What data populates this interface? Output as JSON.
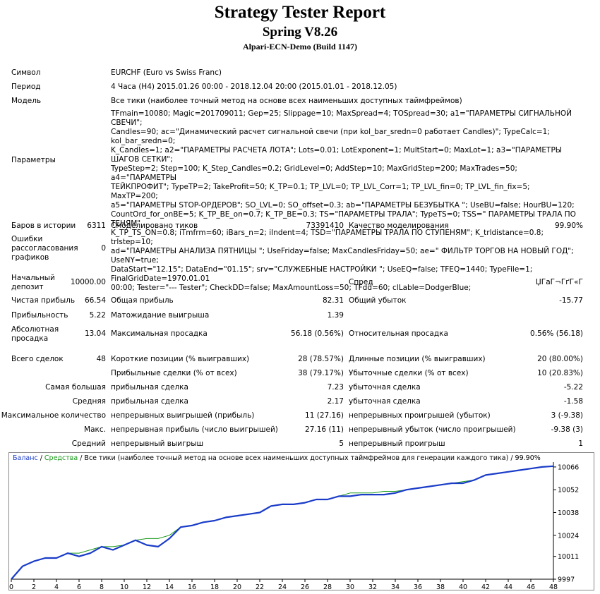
{
  "header": {
    "title": "Strategy Tester Report",
    "ea_name": "Spring V8.26",
    "server": "Alpari-ECN-Demo (Build 1147)"
  },
  "info": {
    "symbol_label": "Символ",
    "symbol_value": "EURCHF (Euro vs Swiss Franc)",
    "period_label": "Период",
    "period_value": "4 Часа (H4) 2015.01.26 00:00 - 2018.12.04 20:00 (2015.01.01 - 2018.12.05)",
    "model_label": "Модель",
    "model_value": "Все тики (наиболее точный метод на основе всех наименьших доступных таймфреймов)",
    "params_label": "Параметры",
    "params_lines": [
      "TFmain=10080; Magic=201709011; Gep=25; Slippage=10; MaxSpread=4; TOSpread=30; a1=\"ПАРАМЕТРЫ СИГНАЛЬНОЙ СВЕЧИ\";",
      "Candles=90; ac=\"Динамический расчет сигнальной свечи (при kol_bar_sredn=0 работает Candles)\"; TypeCalc=1; kol_bar_sredn=0;",
      "K_Candles=1; a2=\"ПАРАМЕТРЫ РАСЧЕТА ЛОТА\"; Lots=0.01; LotExponent=1; MultStart=0; MaxLot=1; a3=\"ПАРАМЕТРЫ ШАГОВ СЕТКИ\";",
      "TypeStep=2; Step=100; K_Step_Candles=0.2; GridLevel=0; AddStep=10; MaxGridStep=200; MaxTrades=50; a4=\"ПАРАМЕТРЫ",
      "ТЕЙКПРОФИТ\"; TypeTP=2; TakeProfit=50; K_TP=0.1; TP_LVL=0; TP_LVL_Corr=1; TP_LVL_fin=0; TP_LVL_fin_fix=5; MaxTP=200;",
      "a5=\"ПАРАМЕТРЫ STOP-ОРДЕРОВ\"; SO_LVL=0; SO_offset=0.3; ab=\"ПАРАМЕТРЫ БЕЗУБЫТКА \"; UseBU=false; HourBU=120;",
      "CountOrd_for_onBE=5; K_TP_BE_on=0.7; K_TP_BE=0.3; TS=\"ПАРАМЕТРЫ ТРАЛА\"; TypeTS=0; TSS=\" ПАРАМЕТРЫ ТРАЛА ПО ТЕНЯМ\"",
      "K_TP_TS_ON=0.8; iTmfrm=60; iBars_n=2; iIndent=4; TSD=\"ПАРАМЕТРЫ ТРАЛА ПО СТУПЕНЯМ\"; K_trldistance=0.8; trlstep=10;",
      "ad=\"ПАРАМЕТРЫ АНАЛИЗА ПЯТНИЦЫ \"; UseFriday=false; MaxCandlesFriday=50; ae=\" ФИЛЬТР ТОРГОВ НА НОВЫЙ ГОД\"; UseNY=true;",
      "DataStart=\"12.15\"; DataEnd=\"01.15\"; srv=\"СЛУЖЕБНЫЕ НАСТРОЙКИ \"; UseEQ=false; TFEQ=1440; TypeFile=1; FinalGridDate=1970.01.01",
      "00:00; Tester=\"--- Tester\"; CheckDD=false; MaxAmountLoss=50; TFdd=60; clLable=DodgerBlue;"
    ]
  },
  "stats": {
    "bars_label": "Баров в истории",
    "bars_value": "6311",
    "ticks_label": "Смоделировано тиков",
    "ticks_value": "73391410",
    "quality_label": "Качество моделирования",
    "quality_value": "99.90%",
    "errors_label_1": "Ошибки",
    "errors_label_2": "рассогласования",
    "errors_label_3": "графиков",
    "errors_value": "0",
    "deposit_label_1": "Начальный",
    "deposit_label_2": "депозит",
    "deposit_value": "10000.00",
    "spread_label": "Спред",
    "spread_value": "ЏГаГ¬ГґГ«Г",
    "net_label": "Чистая прибыль",
    "net_value": "66.54",
    "gross_profit_label": "Общая прибыль",
    "gross_profit_value": "82.31",
    "gross_loss_label": "Общий убыток",
    "gross_loss_value": "-15.77",
    "pf_label": "Прибыльность",
    "pf_value": "5.22",
    "expected_label": "Матожидание выигрыша",
    "expected_value": "1.39",
    "absdd_label_1": "Абсолютная",
    "absdd_label_2": "просадка",
    "absdd_value": "13.04",
    "maxdd_label": "Максимальная просадка",
    "maxdd_value": "56.18 (0.56%)",
    "reldd_label": "Относительная просадка",
    "reldd_value": "0.56% (56.18)",
    "trades_label": "Всего сделок",
    "trades_value": "48",
    "short_label": "Короткие позиции (% выигравших)",
    "short_value": "28 (78.57%)",
    "long_label": "Длинные позиции (% выигравших)",
    "long_value": "20 (80.00%)",
    "profit_trades_label": "Прибыльные сделки (% от всех)",
    "profit_trades_value": "38 (79.17%)",
    "loss_trades_label": "Убыточные сделки (% от всех)",
    "loss_trades_value": "10 (20.83%)",
    "largest_label": "Самая большая",
    "largest_profit_label": "прибыльная сделка",
    "largest_profit_value": "7.23",
    "largest_loss_label": "убыточная сделка",
    "largest_loss_value": "-5.22",
    "average_label": "Средняя",
    "average_profit_label": "прибыльная сделка",
    "average_profit_value": "2.17",
    "average_loss_label": "убыточная сделка",
    "average_loss_value": "-1.58",
    "maxcount_label": "Максимальное количество",
    "maxcount_wins_label": "непрерывных выигрышей (прибыль)",
    "maxcount_wins_value": "11 (27.16)",
    "maxcount_losses_label": "непрерывных проигрышей (убыток)",
    "maxcount_losses_value": "3 (-9.38)",
    "max_label": "Макс.",
    "max_profit_label": "непрерывная прибыль (число выигрышей)",
    "max_profit_value": "27.16 (11)",
    "max_loss_label": "непрерывный убыток (число проигрышей)",
    "max_loss_value": "-9.38 (3)",
    "avg_label": "Средний",
    "avg_wins_label": "непрерывный выигрыш",
    "avg_wins_value": "5",
    "avg_losses_label": "непрерывный проигрыш",
    "avg_losses_value": "1"
  },
  "chart_legend": {
    "balance": "Баланс",
    "sep1": " / ",
    "equity": "Средства",
    "rest": " / Все тики (наиболее точный метод на основе всех наименьших доступных таймфреймов для генерации каждого тика) / 99.90%"
  },
  "chart_data": {
    "type": "line",
    "series": [
      {
        "name": "Баланс",
        "color": "#1a3cc8",
        "x": [
          0,
          1,
          2,
          3,
          4,
          5,
          6,
          7,
          8,
          9,
          10,
          11,
          12,
          13,
          14,
          15,
          16,
          17,
          18,
          19,
          20,
          21,
          22,
          23,
          24,
          25,
          26,
          27,
          28,
          29,
          30,
          31,
          32,
          33,
          34,
          35,
          36,
          37,
          38,
          39,
          40,
          41,
          42,
          43,
          44,
          45,
          46,
          47,
          48
        ],
        "y": [
          9997,
          10005,
          10008,
          10010,
          10010,
          10013,
          10011,
          10013,
          10017,
          10015,
          10018,
          10021,
          10018,
          10017,
          10022,
          10029,
          10030,
          10032,
          10033,
          10035,
          10036,
          10037,
          10038,
          10042,
          10043,
          10043,
          10044,
          10046,
          10046,
          10048,
          10048,
          10049,
          10049,
          10049,
          10050,
          10052,
          10053,
          10054,
          10055,
          10056,
          10056,
          10058,
          10061,
          10062,
          10063,
          10064,
          10065,
          10066,
          10066.5
        ]
      },
      {
        "name": "Средства",
        "color": "#1a9a1a",
        "x": [
          0,
          1,
          2,
          3,
          4,
          5,
          6,
          7,
          8,
          9,
          10,
          11,
          12,
          13,
          14,
          15,
          16,
          17,
          18,
          19,
          20,
          21,
          22,
          23,
          24,
          25,
          26,
          27,
          28,
          29,
          30,
          31,
          32,
          33,
          34,
          35,
          36,
          37,
          38,
          39,
          40,
          41,
          42,
          43,
          44,
          45,
          46,
          47,
          48
        ],
        "y": [
          9997,
          10005,
          10008,
          10010,
          10010,
          10013,
          10013,
          10015,
          10017,
          10017,
          10018,
          10021,
          10022,
          10022,
          10024,
          10029,
          10030,
          10032,
          10033,
          10035,
          10036,
          10037,
          10038,
          10042,
          10043,
          10043,
          10044,
          10046,
          10046,
          10048,
          10050,
          10050,
          10050,
          10051,
          10051,
          10052,
          10053,
          10054,
          10055,
          10056,
          10057,
          10058,
          10061,
          10062,
          10063,
          10064,
          10065,
          10066,
          10066.5
        ]
      }
    ],
    "yticks": [
      9997,
      10011,
      10024,
      10038,
      10052,
      10066
    ],
    "xticks": [
      0,
      2,
      4,
      6,
      8,
      10,
      12,
      14,
      16,
      18,
      20,
      22,
      24,
      26,
      28,
      30,
      32,
      34,
      36,
      38,
      40,
      42,
      44,
      46,
      48
    ],
    "xlim": [
      0,
      48
    ],
    "ylim": [
      9997,
      10069
    ],
    "grid": false
  }
}
